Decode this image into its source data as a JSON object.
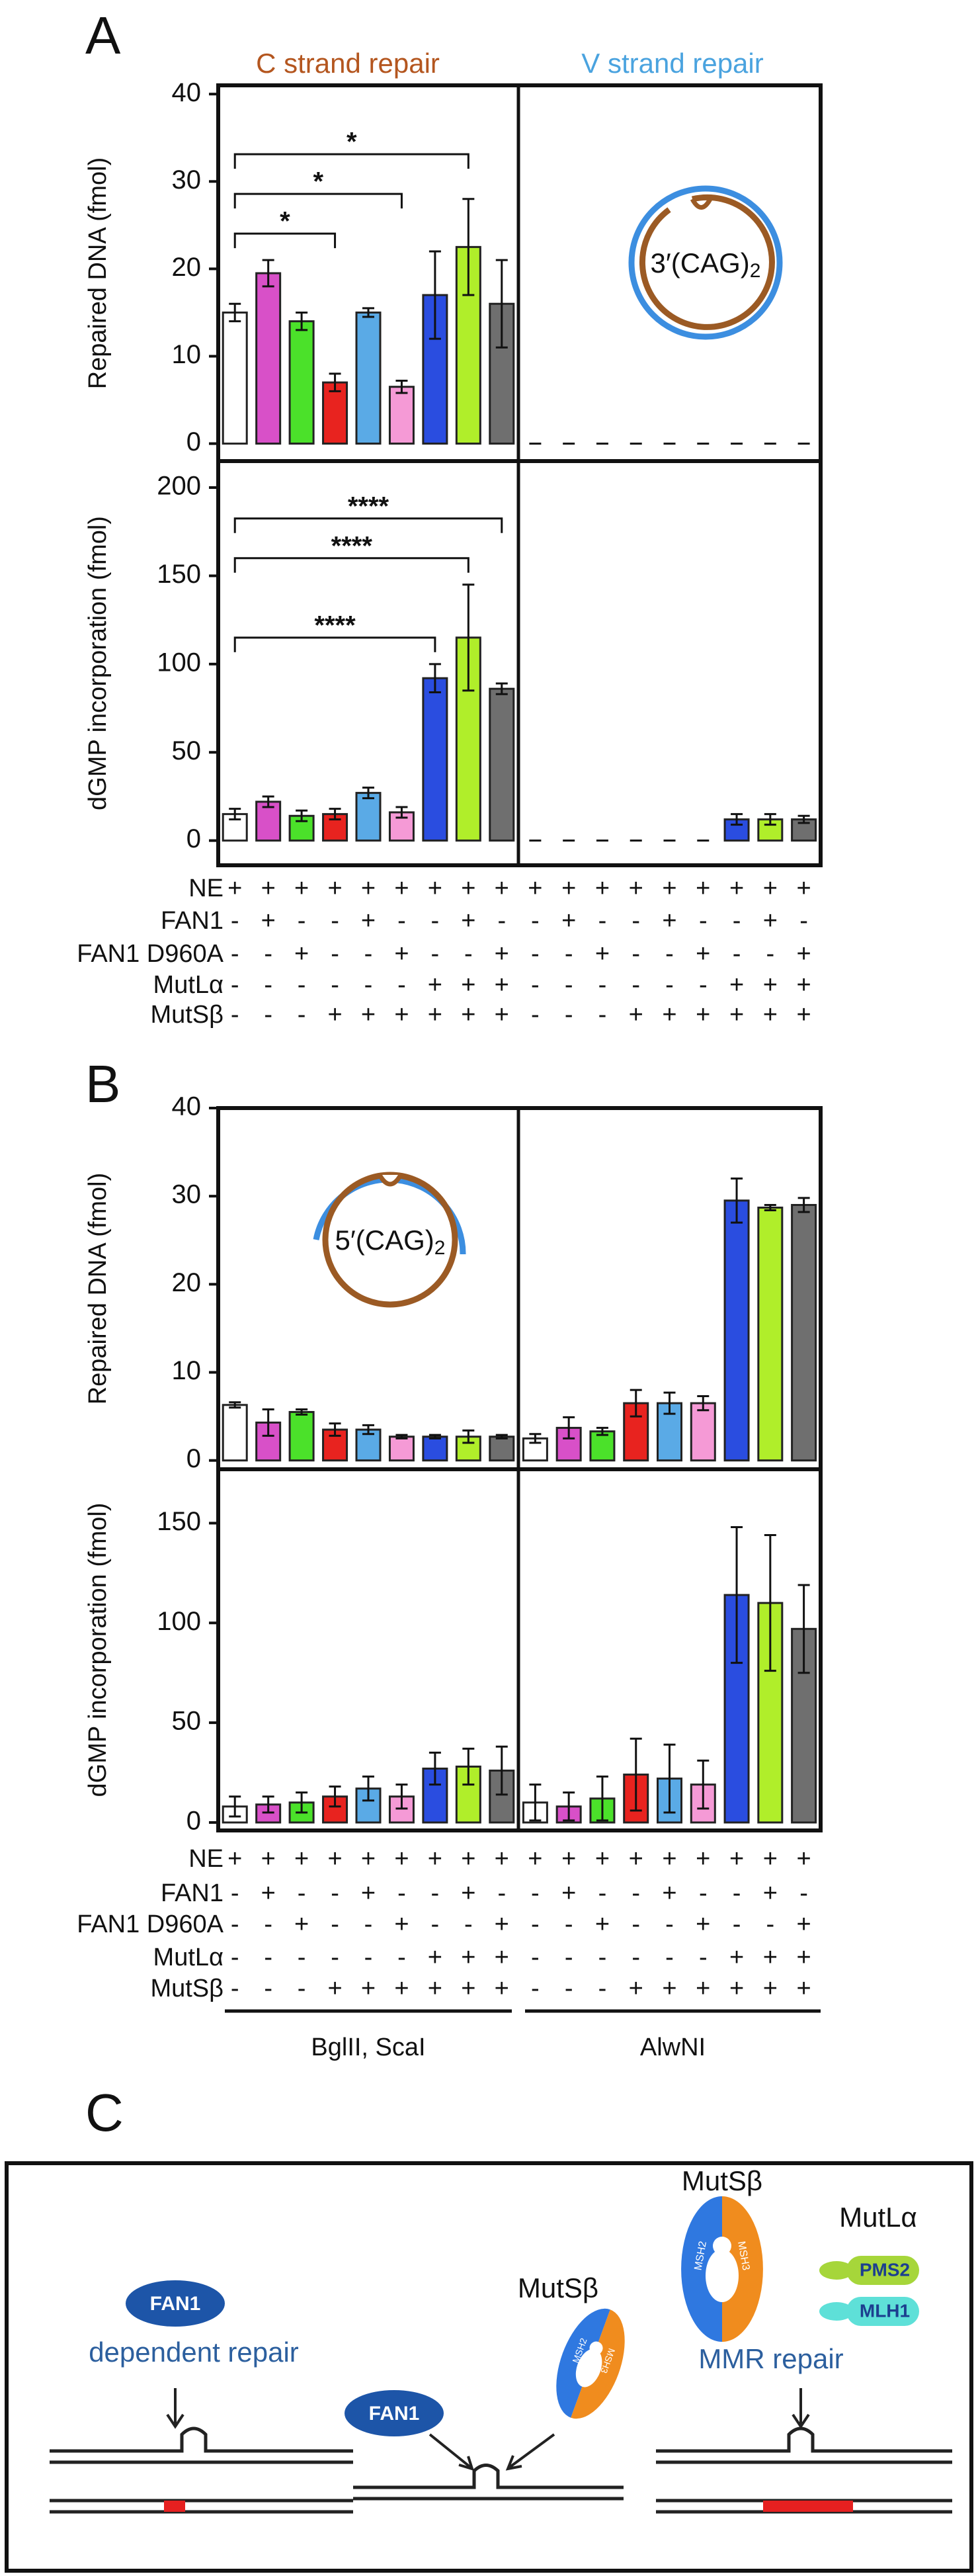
{
  "bar_colors": [
    "#ffffff",
    "#d850c8",
    "#4be12a",
    "#e8231f",
    "#5aaae6",
    "#f59ad6",
    "#2a4de0",
    "#b0ee2a",
    "#6f6f6f"
  ],
  "panels": [
    {
      "label": "A",
      "titles": [
        {
          "text": "C strand repair",
          "color": "#b4561f"
        },
        {
          "text": "V strand repair",
          "color": "#4aa3df"
        }
      ],
      "inset": {
        "text": "3′(CAG)",
        "sub": "2"
      },
      "conditions": [
        {
          "label": "NE",
          "marks": [
            "+",
            "+",
            "+",
            "+",
            "+",
            "+",
            "+",
            "+",
            "+",
            "+",
            "+",
            "+",
            "+",
            "+",
            "+",
            "+",
            "+",
            "+"
          ]
        },
        {
          "label": "FAN1",
          "marks": [
            "-",
            "+",
            "-",
            "-",
            "+",
            "-",
            "-",
            "+",
            "-",
            "-",
            "+",
            "-",
            "-",
            "+",
            "-",
            "-",
            "+",
            "-"
          ]
        },
        {
          "label": "FAN1 D960A",
          "marks": [
            "-",
            "-",
            "+",
            "-",
            "-",
            "+",
            "-",
            "-",
            "+",
            "-",
            "-",
            "+",
            "-",
            "-",
            "+",
            "-",
            "-",
            "+"
          ]
        },
        {
          "label": "MutLα",
          "marks": [
            "-",
            "-",
            "-",
            "-",
            "-",
            "-",
            "+",
            "+",
            "+",
            "-",
            "-",
            "-",
            "-",
            "-",
            "-",
            "+",
            "+",
            "+"
          ]
        },
        {
          "label": "MutSβ",
          "marks": [
            "-",
            "-",
            "-",
            "+",
            "+",
            "+",
            "+",
            "+",
            "+",
            "-",
            "-",
            "-",
            "+",
            "+",
            "+",
            "+",
            "+",
            "+"
          ]
        }
      ]
    },
    {
      "label": "B",
      "inset": {
        "text": "5′(CAG)",
        "sub": "2"
      },
      "conditions": [
        {
          "label": "NE",
          "marks": [
            "+",
            "+",
            "+",
            "+",
            "+",
            "+",
            "+",
            "+",
            "+",
            "+",
            "+",
            "+",
            "+",
            "+",
            "+",
            "+",
            "+",
            "+"
          ]
        },
        {
          "label": "FAN1",
          "marks": [
            "-",
            "+",
            "-",
            "-",
            "+",
            "-",
            "-",
            "+",
            "-",
            "-",
            "+",
            "-",
            "-",
            "+",
            "-",
            "-",
            "+",
            "-"
          ]
        },
        {
          "label": "FAN1 D960A",
          "marks": [
            "-",
            "-",
            "+",
            "-",
            "-",
            "+",
            "-",
            "-",
            "+",
            "-",
            "-",
            "+",
            "-",
            "-",
            "+",
            "-",
            "-",
            "+"
          ]
        },
        {
          "label": "MutLα",
          "marks": [
            "-",
            "-",
            "-",
            "-",
            "-",
            "-",
            "+",
            "+",
            "+",
            "-",
            "-",
            "-",
            "-",
            "-",
            "-",
            "+",
            "+",
            "+"
          ]
        },
        {
          "label": "MutSβ",
          "marks": [
            "-",
            "-",
            "-",
            "+",
            "+",
            "+",
            "+",
            "+",
            "+",
            "-",
            "-",
            "-",
            "+",
            "+",
            "+",
            "+",
            "+",
            "+"
          ]
        }
      ],
      "groups": [
        "BglII, ScaI",
        "AlwNI"
      ]
    }
  ],
  "chart_data": [
    {
      "type": "bar",
      "ylabel": "Repaired DNA (fmol)",
      "ylim": [
        -2,
        41
      ],
      "yticks": [
        0,
        10,
        20,
        30,
        40
      ],
      "groups": [
        {
          "values": [
            15,
            19.5,
            14,
            7,
            15,
            6.5,
            17,
            22.5,
            16
          ],
          "errors": [
            1,
            1.5,
            1,
            1,
            0.5,
            0.7,
            5,
            5.5,
            5
          ],
          "annotations": [
            {
              "from": 0,
              "to": 3,
              "label": "*"
            },
            {
              "from": 0,
              "to": 5,
              "label": "*"
            },
            {
              "from": 0,
              "to": 7,
              "label": "*"
            }
          ]
        },
        {
          "values": [
            0,
            0,
            0,
            0,
            0,
            0,
            0,
            0,
            0
          ],
          "errors": [
            0,
            0,
            0,
            0,
            0,
            0,
            0,
            0,
            0
          ]
        }
      ]
    },
    {
      "type": "bar",
      "ylabel": "dGMP incorporation (fmol)",
      "ylim": [
        -14,
        215
      ],
      "yticks": [
        0,
        50,
        100,
        150,
        200
      ],
      "groups": [
        {
          "values": [
            15,
            22,
            14,
            15,
            27,
            16,
            92,
            115,
            86
          ],
          "errors": [
            3,
            3,
            3,
            3,
            3,
            3,
            8,
            30,
            3
          ],
          "annotations": [
            {
              "from": 0,
              "to": 6,
              "label": "****"
            },
            {
              "from": 0,
              "to": 7,
              "label": "****"
            },
            {
              "from": 0,
              "to": 8,
              "label": "****"
            }
          ]
        },
        {
          "values": [
            0,
            0,
            0,
            0,
            0,
            0,
            12,
            12,
            12
          ],
          "errors": [
            0,
            0,
            0,
            0,
            0,
            0,
            3,
            3,
            2
          ]
        }
      ]
    },
    {
      "type": "bar",
      "ylabel": "Repaired DNA (fmol)",
      "ylim": [
        -1,
        40
      ],
      "yticks": [
        0,
        10,
        20,
        30,
        40
      ],
      "groups": [
        {
          "values": [
            6.3,
            4.3,
            5.5,
            3.5,
            3.5,
            2.7,
            2.7,
            2.7,
            2.7
          ],
          "errors": [
            0.3,
            1.5,
            0.3,
            0.7,
            0.5,
            0.2,
            0.2,
            0.7,
            0.2
          ]
        },
        {
          "values": [
            2.5,
            3.7,
            3.3,
            6.5,
            6.5,
            6.5,
            29.5,
            28.7,
            29
          ],
          "errors": [
            0.5,
            1.2,
            0.4,
            1.5,
            1.2,
            0.8,
            2.5,
            0.3,
            0.8
          ]
        }
      ]
    },
    {
      "type": "bar",
      "ylabel": "dGMP incorporation (fmol)",
      "ylim": [
        -4,
        177
      ],
      "yticks": [
        0,
        50,
        100,
        150
      ],
      "groups": [
        {
          "values": [
            8,
            9,
            10,
            13,
            17,
            13,
            27,
            28,
            26
          ],
          "errors": [
            5,
            4,
            5,
            5,
            6,
            6,
            8,
            9,
            12
          ]
        },
        {
          "values": [
            10,
            8,
            12,
            24,
            22,
            19,
            114,
            110,
            97
          ],
          "errors": [
            9,
            7,
            11,
            18,
            17,
            12,
            34,
            34,
            22
          ]
        }
      ]
    }
  ],
  "panel_c": {
    "label": "C",
    "left": {
      "protein": "FAN1",
      "caption": "dependent repair"
    },
    "middle": {
      "fan1": "FAN1",
      "mutsb": "MutSβ",
      "msh2": "MSH2",
      "msh3": "MSH3"
    },
    "right": {
      "mutsb": "MutSβ",
      "msh2": "MSH2",
      "msh3": "MSH3",
      "mutla": "MutLα",
      "pms2": "PMS2",
      "mlh1": "MLH1",
      "caption": "MMR repair"
    }
  }
}
